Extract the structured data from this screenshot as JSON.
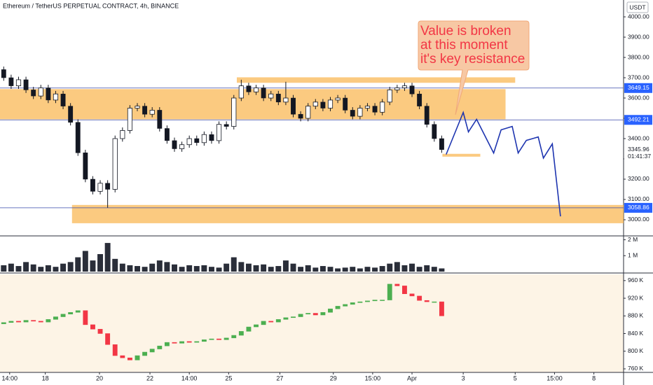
{
  "chart_data": [
    {
      "type": "candlestick",
      "title": "Ethereum / TetherUS PERPETUAL CONTRACT, 4h, BINANCE",
      "currency": "USDT",
      "ylim": [
        2924,
        4083
      ],
      "yticks": [
        {
          "value": 3000,
          "label": "3000.00"
        },
        {
          "value": 3100,
          "label": "3100.00"
        },
        {
          "value": 3200,
          "label": "3200.00"
        },
        {
          "value": 3300,
          "label": "3300.00"
        },
        {
          "value": 3400,
          "label": "3400.00"
        },
        {
          "value": 3500,
          "label": "3500.00"
        },
        {
          "value": 3600,
          "label": "3600.00"
        },
        {
          "value": 3700,
          "label": "3700.00"
        },
        {
          "value": 3800,
          "label": "3800.00"
        },
        {
          "value": 3900,
          "label": "3900.00"
        },
        {
          "value": 4000,
          "label": "4000.00"
        }
      ],
      "up_color": "#ffffff",
      "down_color": "#131722",
      "open": [
        3740,
        3700,
        3660,
        3690,
        3640,
        3610,
        3650,
        3590,
        3620,
        3560,
        3480,
        3330,
        3200,
        3140,
        3180,
        3150,
        3400,
        3440,
        3550,
        3560,
        3520,
        3540,
        3450,
        3390,
        3350,
        3370,
        3400,
        3380,
        3420,
        3390,
        3470,
        3460,
        3600,
        3660,
        3630,
        3650,
        3600,
        3620,
        3580,
        3600,
        3520,
        3500,
        3560,
        3580,
        3550,
        3590,
        3600,
        3540,
        3510,
        3550,
        3560,
        3530,
        3580,
        3640,
        3650,
        3660,
        3620,
        3560,
        3470,
        3400
      ],
      "high": [
        3755,
        3715,
        3705,
        3705,
        3655,
        3665,
        3665,
        3635,
        3635,
        3575,
        3495,
        3345,
        3215,
        3195,
        3195,
        3415,
        3455,
        3565,
        3575,
        3575,
        3555,
        3555,
        3465,
        3405,
        3385,
        3415,
        3415,
        3435,
        3435,
        3485,
        3485,
        3615,
        3690,
        3675,
        3665,
        3665,
        3635,
        3635,
        3680,
        3615,
        3535,
        3575,
        3595,
        3595,
        3605,
        3615,
        3615,
        3555,
        3565,
        3575,
        3575,
        3595,
        3655,
        3665,
        3675,
        3675,
        3635,
        3575,
        3485,
        3415
      ],
      "low": [
        3685,
        3645,
        3645,
        3625,
        3595,
        3595,
        3575,
        3575,
        3545,
        3465,
        3315,
        3185,
        3125,
        3125,
        3060,
        3135,
        3385,
        3425,
        3535,
        3505,
        3505,
        3435,
        3375,
        3335,
        3335,
        3355,
        3365,
        3365,
        3375,
        3375,
        3445,
        3445,
        3585,
        3615,
        3615,
        3585,
        3585,
        3565,
        3565,
        3505,
        3485,
        3485,
        3545,
        3535,
        3535,
        3575,
        3525,
        3495,
        3495,
        3535,
        3515,
        3515,
        3565,
        3625,
        3635,
        3605,
        3545,
        3455,
        3385,
        3330
      ],
      "close": [
        3700,
        3660,
        3690,
        3640,
        3610,
        3650,
        3590,
        3620,
        3560,
        3480,
        3330,
        3200,
        3140,
        3180,
        3150,
        3400,
        3440,
        3550,
        3560,
        3520,
        3540,
        3450,
        3390,
        3350,
        3370,
        3400,
        3380,
        3420,
        3390,
        3470,
        3460,
        3600,
        3660,
        3630,
        3650,
        3600,
        3620,
        3580,
        3600,
        3520,
        3500,
        3560,
        3580,
        3550,
        3590,
        3600,
        3540,
        3510,
        3550,
        3560,
        3530,
        3580,
        3640,
        3650,
        3660,
        3620,
        3560,
        3470,
        3400,
        3345.96
      ],
      "levels": [
        3649.15,
        3492.21,
        3058.86
      ],
      "level_color": "#3949ab",
      "last_price": 3345.96,
      "countdown": "01:41:37",
      "zone_color": "#f9b34a",
      "zones": [
        {
          "x": [
            0,
            68.1
          ],
          "y": [
            3495,
            3644
          ]
        },
        {
          "x": [
            31.9,
            69.4
          ],
          "y": [
            3675,
            3702
          ]
        },
        {
          "x": [
            9.7,
            84
          ],
          "y": [
            2983,
            3073
          ]
        },
        {
          "x": [
            59.6,
            64.7
          ],
          "y": [
            3311,
            3325
          ]
        }
      ],
      "projection": {
        "color": "#1e35b0",
        "x": [
          60.1,
          62.4,
          63.1,
          64.2,
          66.5,
          67.5,
          69.0,
          69.8,
          70.9,
          72.5,
          73.2,
          74.4,
          75.5
        ],
        "y": [
          3322,
          3529,
          3433,
          3495,
          3329,
          3443,
          3460,
          3329,
          3391,
          3408,
          3304,
          3374,
          3017
        ]
      },
      "annotation": [
        "Value is broken",
        "at this moment",
        "it's key resistance"
      ]
    },
    {
      "type": "bar",
      "ylim": [
        0,
        2200000
      ],
      "yticks": [
        {
          "value": 1000000,
          "label": "1 M"
        },
        {
          "value": 2000000,
          "label": "2 M"
        }
      ],
      "color": "#2a2e39",
      "values": [
        400000,
        500000,
        350000,
        600000,
        450000,
        300000,
        400000,
        300000,
        500000,
        600000,
        900000,
        1300000,
        700000,
        1100000,
        1800000,
        800000,
        500000,
        400000,
        350000,
        300000,
        500000,
        700000,
        600000,
        450000,
        300000,
        400000,
        350000,
        400000,
        300000,
        250000,
        500000,
        900000,
        600000,
        500000,
        400000,
        450000,
        300000,
        350000,
        700000,
        500000,
        300000,
        400000,
        250000,
        350000,
        300000,
        200000,
        250000,
        300000,
        200000,
        300000,
        250000,
        350000,
        500000,
        600000,
        400000,
        500000,
        300000,
        400000,
        300000,
        200000
      ]
    },
    {
      "type": "candlestick",
      "ylim": [
        752000,
        974000
      ],
      "yticks": [
        {
          "value": 760000,
          "label": "760 K"
        },
        {
          "value": 800000,
          "label": "800 K"
        },
        {
          "value": 840000,
          "label": "840 K"
        },
        {
          "value": 880000,
          "label": "880 K"
        },
        {
          "value": 920000,
          "label": "920 K"
        },
        {
          "value": 960000,
          "label": "960 K"
        }
      ],
      "up_color": "#4caf50",
      "down_color": "#f23645",
      "open": [
        862000,
        865000,
        868000,
        866000,
        870000,
        868000,
        866000,
        872000,
        878000,
        884000,
        888000,
        892000,
        860000,
        850000,
        840000,
        815000,
        790000,
        785000,
        780000,
        790000,
        798000,
        805000,
        812000,
        820000,
        818000,
        822000,
        820000,
        822000,
        826000,
        828000,
        826000,
        830000,
        836000,
        845000,
        855000,
        860000,
        868000,
        866000,
        872000,
        876000,
        878000,
        884000,
        886000,
        882000,
        888000,
        896000,
        902000,
        906000,
        910000,
        912000,
        914000,
        916000,
        916000,
        952000,
        948000,
        930000,
        925000,
        915000,
        912000,
        912000
      ],
      "close": [
        865000,
        868000,
        866000,
        870000,
        868000,
        866000,
        872000,
        878000,
        884000,
        888000,
        892000,
        860000,
        850000,
        840000,
        815000,
        790000,
        785000,
        780000,
        790000,
        798000,
        805000,
        812000,
        820000,
        818000,
        822000,
        820000,
        822000,
        826000,
        828000,
        826000,
        830000,
        836000,
        845000,
        855000,
        860000,
        868000,
        866000,
        872000,
        876000,
        878000,
        884000,
        886000,
        882000,
        888000,
        896000,
        902000,
        906000,
        910000,
        912000,
        914000,
        916000,
        916000,
        952000,
        948000,
        930000,
        925000,
        915000,
        912000,
        912000,
        880000
      ],
      "xlim": [
        0,
        84
      ],
      "xticks": [
        {
          "value": 1.3,
          "label": "14:00"
        },
        {
          "value": 6.1,
          "label": "18"
        },
        {
          "value": 13.4,
          "label": "20"
        },
        {
          "value": 20.2,
          "label": "22"
        },
        {
          "value": 25.5,
          "label": "14:00"
        },
        {
          "value": 30.8,
          "label": "25"
        },
        {
          "value": 37.7,
          "label": "27"
        },
        {
          "value": 44.9,
          "label": "29"
        },
        {
          "value": 50.2,
          "label": "15:00"
        },
        {
          "value": 55.5,
          "label": "Apr"
        },
        {
          "value": 62.4,
          "label": "3"
        },
        {
          "value": 69.4,
          "label": "5"
        },
        {
          "value": 74.7,
          "label": "15:00"
        },
        {
          "value": 80,
          "label": "8"
        }
      ]
    }
  ]
}
